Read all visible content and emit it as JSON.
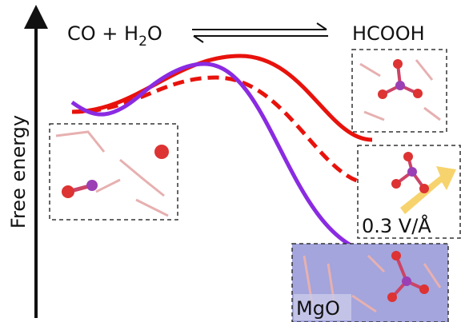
{
  "axis_label": "Free energy",
  "reaction": {
    "reactant": [
      "CO + H",
      "2",
      "O"
    ],
    "product": "HCOOH"
  },
  "labels": {
    "field": "0.3 V/Å",
    "surface": "MgO"
  }
}
